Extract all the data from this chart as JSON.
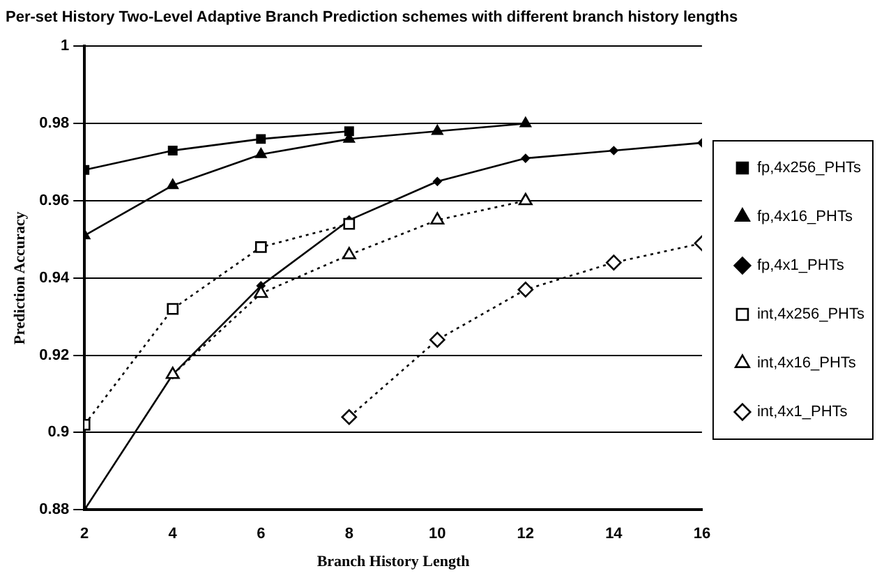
{
  "chart_data": {
    "type": "line",
    "title": "Per-set History Two-Level Adaptive Branch Prediction schemes with different branch history lengths",
    "xlabel": "Branch History Length",
    "ylabel": "Prediction Accuracy",
    "xlim": [
      2,
      16
    ],
    "xticks": [
      2,
      4,
      6,
      8,
      10,
      12,
      14,
      16
    ],
    "ylim": [
      0.88,
      1
    ],
    "yticks": [
      0.88,
      {
        "value": 0.9,
        "label": "0.9"
      },
      0.92,
      0.94,
      0.96,
      0.98,
      {
        "value": 1,
        "label": "1"
      }
    ],
    "grid": "y",
    "legend": "right",
    "series": [
      {
        "name": "fp,4x256_PHTs",
        "color": "#000000",
        "x": [
          2,
          4,
          6,
          8
        ],
        "values": [
          0.968,
          0.973,
          0.976,
          0.978
        ],
        "marker": "square",
        "line_style": "solid"
      },
      {
        "name": "fp,4x16_PHTs",
        "color": "#000000",
        "x": [
          2,
          4,
          6,
          8,
          10,
          12
        ],
        "values": [
          0.951,
          0.964,
          0.972,
          0.976,
          0.978,
          0.98
        ],
        "marker": "triangle",
        "line_style": "solid"
      },
      {
        "name": "fp,4x1_PHTs",
        "color": "#000000",
        "x": [
          2,
          4,
          6,
          8,
          10,
          12,
          14,
          16
        ],
        "values": [
          0.88,
          0.915,
          0.938,
          0.955,
          0.965,
          0.971,
          0.973,
          0.975
        ],
        "marker": "diamond",
        "line_style": "solid"
      },
      {
        "name": "int,4x256_PHTs",
        "color": "#000000",
        "x": [
          2,
          4,
          6,
          8
        ],
        "values": [
          0.902,
          0.932,
          0.948,
          0.954
        ],
        "marker": "square",
        "line_style": "dotted"
      },
      {
        "name": "int,4x16_PHTs",
        "color": "#000000",
        "x": [
          4,
          6,
          8,
          10,
          12
        ],
        "values": [
          0.915,
          0.936,
          0.946,
          0.955,
          0.96
        ],
        "marker": "triangle",
        "line_style": "dotted"
      },
      {
        "name": "int,4x1_PHTs",
        "color": "#000000",
        "x": [
          8,
          10,
          12,
          14,
          16
        ],
        "values": [
          0.904,
          0.924,
          0.937,
          0.944,
          0.949
        ],
        "marker": "diamond",
        "line_style": "dotted"
      }
    ]
  }
}
